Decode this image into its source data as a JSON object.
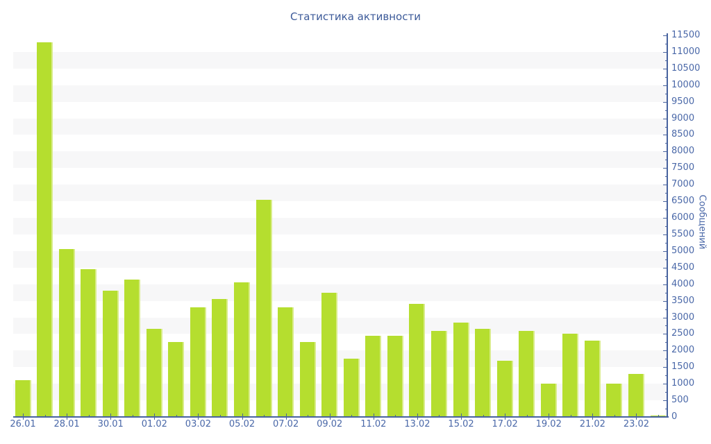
{
  "chart_data": {
    "type": "bar",
    "title": "Статистика активности",
    "ylabel": "Сообщений",
    "xlabel": "",
    "ylim": [
      0,
      11500
    ],
    "y_tick_step": 500,
    "y_minor_tick_step": 250,
    "x_label_every_n_days": 2,
    "legend_position": "none",
    "grid": "alternating horizontal 500-unit bands",
    "categories": [
      "26.01",
      "27.01",
      "28.01",
      "29.01",
      "30.01",
      "31.01",
      "01.02",
      "02.02",
      "03.02",
      "04.02",
      "05.02",
      "06.02",
      "07.02",
      "08.02",
      "09.02",
      "10.02",
      "11.02",
      "12.02",
      "13.02",
      "14.02",
      "15.02",
      "16.02",
      "17.02",
      "18.02",
      "19.02",
      "20.02",
      "21.02",
      "22.02",
      "23.02",
      "24.02"
    ],
    "values": [
      1100,
      11300,
      5050,
      4450,
      3800,
      4150,
      2650,
      2250,
      3300,
      3550,
      4050,
      6550,
      3300,
      2250,
      3750,
      1750,
      2450,
      2450,
      3400,
      2600,
      2850,
      2650,
      1700,
      2600,
      1000,
      2500,
      2300,
      1000,
      1300,
      50
    ],
    "x_tick_labels": [
      "26.01",
      "28.01",
      "30.01",
      "01.02",
      "03.02",
      "05.02",
      "07.02",
      "09.02",
      "11.02",
      "13.02",
      "15.02",
      "17.02",
      "19.02",
      "21.02",
      "23.02"
    ],
    "y_tick_labels": [
      "0",
      "500",
      "1000",
      "1500",
      "2000",
      "2500",
      "3000",
      "3500",
      "4000",
      "4500",
      "5000",
      "5500",
      "6000",
      "6500",
      "7000",
      "7500",
      "8000",
      "8500",
      "9000",
      "9500",
      "10000",
      "10500",
      "11000",
      "11500"
    ],
    "colors": {
      "bar": "#b5de2f",
      "bar_edge": "#d9ec8a",
      "title_text": "#3c5a99",
      "tick_text": "#4a68a8",
      "axis_line": "#47629e",
      "band_gray": "#f7f7f8",
      "background": "#ffffff"
    }
  }
}
